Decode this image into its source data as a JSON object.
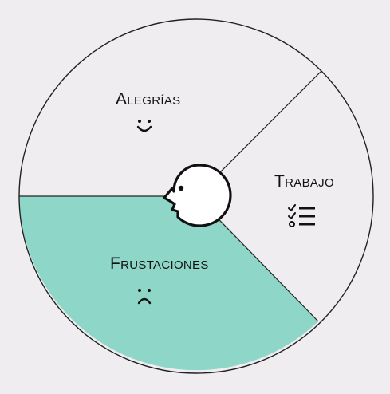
{
  "colors": {
    "background": "#efedf0",
    "segment_default": "#efedf0",
    "segment_highlight": "#8dd6c8",
    "stroke": "#222222",
    "head_fill": "#ffffff"
  },
  "segments": [
    {
      "key": "alegrias",
      "label": "Alegrías",
      "icon": "smile-icon",
      "highlighted": false
    },
    {
      "key": "trabajo",
      "label": "Trabajo",
      "icon": "checklist-icon",
      "highlighted": false
    },
    {
      "key": "frustaciones",
      "label": "Frustaciones",
      "icon": "frown-icon",
      "highlighted": true
    }
  ],
  "center_icon": "head-profile-icon"
}
